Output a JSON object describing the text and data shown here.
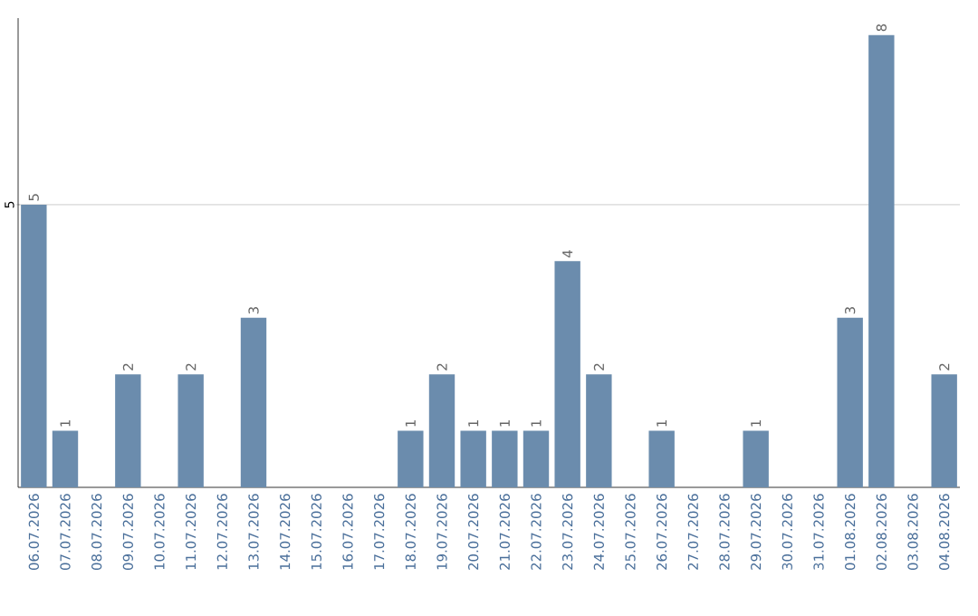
{
  "chart_data": {
    "type": "bar",
    "categories": [
      "06.07.2026",
      "07.07.2026",
      "08.07.2026",
      "09.07.2026",
      "10.07.2026",
      "11.07.2026",
      "12.07.2026",
      "13.07.2026",
      "14.07.2026",
      "15.07.2026",
      "16.07.2026",
      "17.07.2026",
      "18.07.2026",
      "19.07.2026",
      "20.07.2026",
      "21.07.2026",
      "22.07.2026",
      "23.07.2026",
      "24.07.2026",
      "25.07.2026",
      "26.07.2026",
      "27.07.2026",
      "28.07.2026",
      "29.07.2026",
      "30.07.2026",
      "31.07.2026",
      "01.08.2026",
      "02.08.2026",
      "03.08.2026",
      "04.08.2026"
    ],
    "values": [
      5,
      1,
      0,
      2,
      0,
      2,
      0,
      3,
      0,
      0,
      0,
      0,
      1,
      2,
      1,
      1,
      1,
      4,
      2,
      0,
      1,
      0,
      0,
      1,
      0,
      0,
      3,
      8,
      0,
      2
    ],
    "value_labels": [
      "5",
      "1",
      null,
      "2",
      null,
      "2",
      null,
      "3",
      null,
      null,
      null,
      null,
      "1",
      "2",
      "1",
      "1",
      "1",
      "4",
      "2",
      null,
      "1",
      null,
      null,
      "1",
      null,
      null,
      "3",
      "8",
      null,
      "2"
    ],
    "color": "#6b8cad",
    "ylim": [
      0,
      8.3
    ],
    "yticks": [
      5
    ],
    "grid": "y"
  }
}
